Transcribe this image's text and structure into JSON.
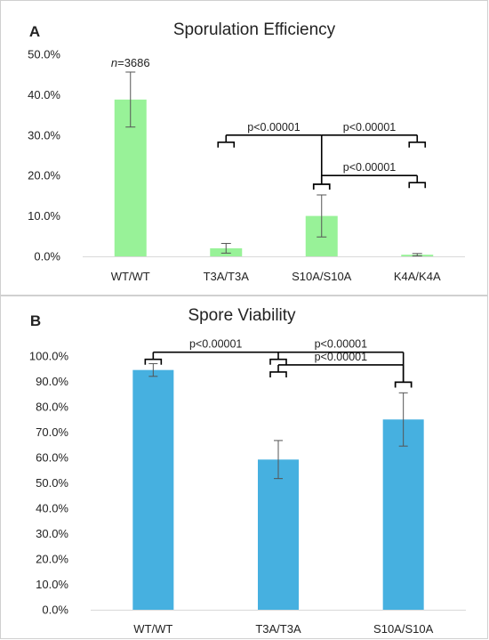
{
  "chart_data": [
    {
      "type": "bar",
      "panel_label": "A",
      "title": "Sporulation Efficiency",
      "categories": [
        "WT/WT",
        "T3A/T3A",
        "S10A/S10A",
        "K4A/K4A"
      ],
      "values": [
        38.8,
        2.0,
        10.0,
        0.4
      ],
      "errors": [
        6.8,
        1.2,
        5.2,
        0.3
      ],
      "ylim": [
        0,
        50
      ],
      "yticks": [
        0,
        10,
        20,
        30,
        40,
        50
      ],
      "ytick_labels": [
        "0.0%",
        "10.0%",
        "20.0%",
        "30.0%",
        "40.0%",
        "50.0%"
      ],
      "bar_color": "#98f298",
      "grid": false,
      "annotation": {
        "prefix": "n",
        "text": "=3686",
        "category_index": 0
      },
      "comparisons": [
        {
          "from": 1,
          "to": 2,
          "y": 30.0,
          "label": "p<0.00001",
          "label_pos": "left"
        },
        {
          "from": 2,
          "to": 3,
          "y": 30.0,
          "label": "p<0.00001",
          "label_pos": "right"
        },
        {
          "from": 2,
          "to": 3,
          "y": 20.0,
          "label": "p<0.00001",
          "label_pos": "mid"
        }
      ]
    },
    {
      "type": "bar",
      "panel_label": "B",
      "title": "Spore Viability",
      "categories": [
        "WT/WT",
        "T3A/T3A",
        "S10A/S10A"
      ],
      "values": [
        94.5,
        59.2,
        75.0
      ],
      "errors": [
        2.5,
        7.5,
        10.5
      ],
      "ylim": [
        0,
        100
      ],
      "yticks": [
        0,
        10,
        20,
        30,
        40,
        50,
        60,
        70,
        80,
        90,
        100
      ],
      "ytick_labels": [
        "0.0%",
        "10.0%",
        "20.0%",
        "30.0%",
        "40.0%",
        "50.0%",
        "60.0%",
        "70.0%",
        "80.0%",
        "90.0%",
        "100.0%"
      ],
      "bar_color": "#46b0e0",
      "grid": false,
      "comparisons": [
        {
          "from": 0,
          "to": 1,
          "y": 101.5,
          "label": "p<0.00001",
          "label_pos": "left"
        },
        {
          "from": 1,
          "to": 2,
          "y": 101.5,
          "label": "p<0.00001",
          "label_pos": "right"
        },
        {
          "from": 1,
          "to": 2,
          "y": 96.5,
          "label": "p<0.00001",
          "label_pos": "mid"
        }
      ]
    }
  ]
}
